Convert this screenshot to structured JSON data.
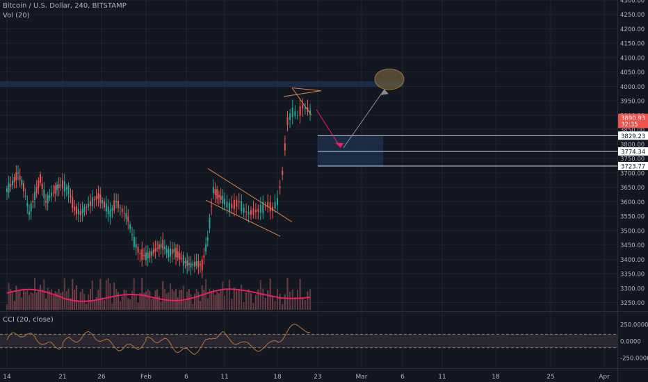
{
  "legend": {
    "symbol": "Bitcoin / U.S. Dollar, 240, BITSTAMP",
    "volume": "Vol (20)",
    "cci": "CCI (20, close)"
  },
  "colors": {
    "background": "#131722",
    "grid": "#1f2430",
    "up": "#26a69a",
    "down": "#ef5350",
    "volume_up": "#5d3a3f",
    "volume_down": "#6e3f45",
    "volume_ma": "#e91e63",
    "cci_line": "#b8763c",
    "cci_band": "#2a2733",
    "zone": "#1e3a5c",
    "pattern": "#e0834a",
    "arrow_down": "#e91e63",
    "arrow_up": "#8c8c8c",
    "target": "#c9943a",
    "axis_text": "#b2b5be"
  },
  "chart_data": [
    {
      "type": "candlestick",
      "title": "Bitcoin / U.S. Dollar, 240, BITSTAMP",
      "ylim": [
        3220,
        4300
      ],
      "y_ticks": [
        3250,
        3300,
        3350,
        3400,
        3450,
        3500,
        3550,
        3600,
        3650,
        3700,
        3750,
        3800,
        3850,
        3900,
        3950,
        4000,
        4050,
        4100,
        4150,
        4200,
        4250,
        4300
      ],
      "y_tick_labels": [
        "3250.00",
        "3300.00",
        "3350.00",
        "3400.00",
        "3450.00",
        "3500.00",
        "3550.00",
        "3600.00",
        "3650.00",
        "3700.00",
        "3750.00",
        "3800.00",
        "3850.00",
        "3900.00",
        "3950.00",
        "4000.00",
        "4050.00",
        "4100.00",
        "4150.00",
        "4200.00",
        "4250.00",
        "4300.00"
      ],
      "x_labels": [
        "14",
        "21",
        "26",
        "Feb",
        "6",
        "11",
        "18",
        "23",
        "Mar",
        "6",
        "11",
        "18",
        "25",
        "Apr"
      ],
      "close_segments": [
        {
          "start": "14",
          "end": "21",
          "values": [
            3640,
            3665,
            3700,
            3650,
            3560,
            3620,
            3680,
            3600,
            3625,
            3650,
            3660
          ]
        },
        {
          "start": "21",
          "end": "Feb",
          "values": [
            3660,
            3640,
            3575,
            3560,
            3580,
            3600,
            3620,
            3590,
            3560,
            3600,
            3570,
            3540,
            3460,
            3420,
            3410
          ]
        },
        {
          "start": "Feb",
          "end": "11",
          "values": [
            3410,
            3420,
            3440,
            3450,
            3420,
            3430,
            3410,
            3390,
            3380,
            3385,
            3380,
            3470,
            3640,
            3620,
            3600
          ]
        },
        {
          "start": "11",
          "end": "18",
          "values": [
            3600,
            3580,
            3590,
            3600,
            3570,
            3560,
            3565,
            3570,
            3580,
            3590,
            3575,
            3600
          ]
        },
        {
          "start": "18",
          "end": "23",
          "values": [
            3600,
            3700,
            3880,
            3910,
            3900,
            3930,
            3920,
            3900,
            3890
          ]
        }
      ],
      "price_labels": [
        {
          "value": 3890.93,
          "text": "3890.93"
        },
        {
          "value": 3870,
          "text": "32:35"
        },
        {
          "value": 3829.23,
          "text": "3829.23"
        },
        {
          "value": 3774.34,
          "text": "3774.34"
        },
        {
          "value": 3723.77,
          "text": "3723.77"
        }
      ],
      "annotations": {
        "resistance_zone": {
          "x_start": "left-edge",
          "x_end": "Mar+",
          "y_low": 3998,
          "y_high": 4018
        },
        "support_zone": {
          "x_start": "23",
          "x_end": "Mar+",
          "y_low": 3723.77,
          "y_high": 3829.23
        },
        "horizontal_levels": [
          3829.23,
          3774.34,
          3723.77
        ],
        "target_ellipse": {
          "x": "Mar+",
          "y": 4025
        },
        "bull_flag_channel": {
          "from": "11",
          "to": "18"
        },
        "pennant": {
          "at": "18-23"
        },
        "projection": [
          "3900 near 18-23",
          "3790 before Mar",
          "4025 after Mar"
        ]
      }
    },
    {
      "type": "bar",
      "name": "Vol (20)",
      "relative_volume_peak": "near 18 and Feb 11"
    },
    {
      "type": "line",
      "title": "CCI (20, close)",
      "ylim": [
        -300,
        300
      ],
      "y_ticks": [
        250,
        0,
        -250
      ],
      "y_tick_labels": [
        "250.0000",
        "0.0000",
        "-250.0000"
      ],
      "bands": [
        100,
        -100
      ]
    }
  ]
}
